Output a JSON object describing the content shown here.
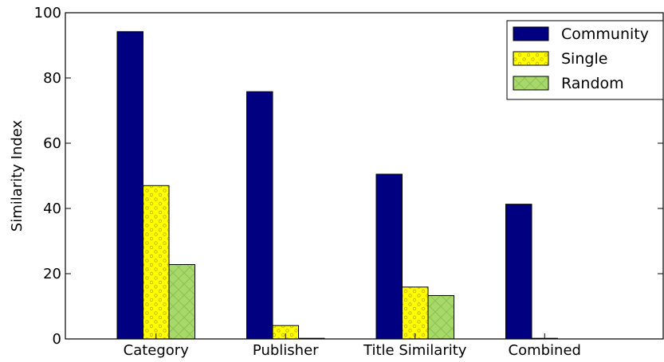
{
  "chart_data": {
    "type": "bar",
    "title": "",
    "xlabel": "",
    "ylabel": "Similarity Index",
    "ylim": [
      0,
      100
    ],
    "yticks": [
      0,
      20,
      40,
      60,
      80,
      100
    ],
    "categories": [
      "Category",
      "Publisher",
      "Title Similarity",
      "Combined"
    ],
    "series": [
      {
        "name": "Community",
        "values": [
          94.2,
          75.8,
          50.5,
          41.3
        ],
        "color": "#000080",
        "pattern": "solid"
      },
      {
        "name": "Single",
        "values": [
          47.0,
          4.1,
          15.9,
          0.2
        ],
        "color": "#ffff00",
        "pattern": "circles"
      },
      {
        "name": "Random",
        "values": [
          22.8,
          0.2,
          13.3,
          0.0
        ],
        "color": "#a6d96a",
        "pattern": "crosshatch"
      }
    ],
    "grid": false,
    "legend_position": "top-right"
  }
}
